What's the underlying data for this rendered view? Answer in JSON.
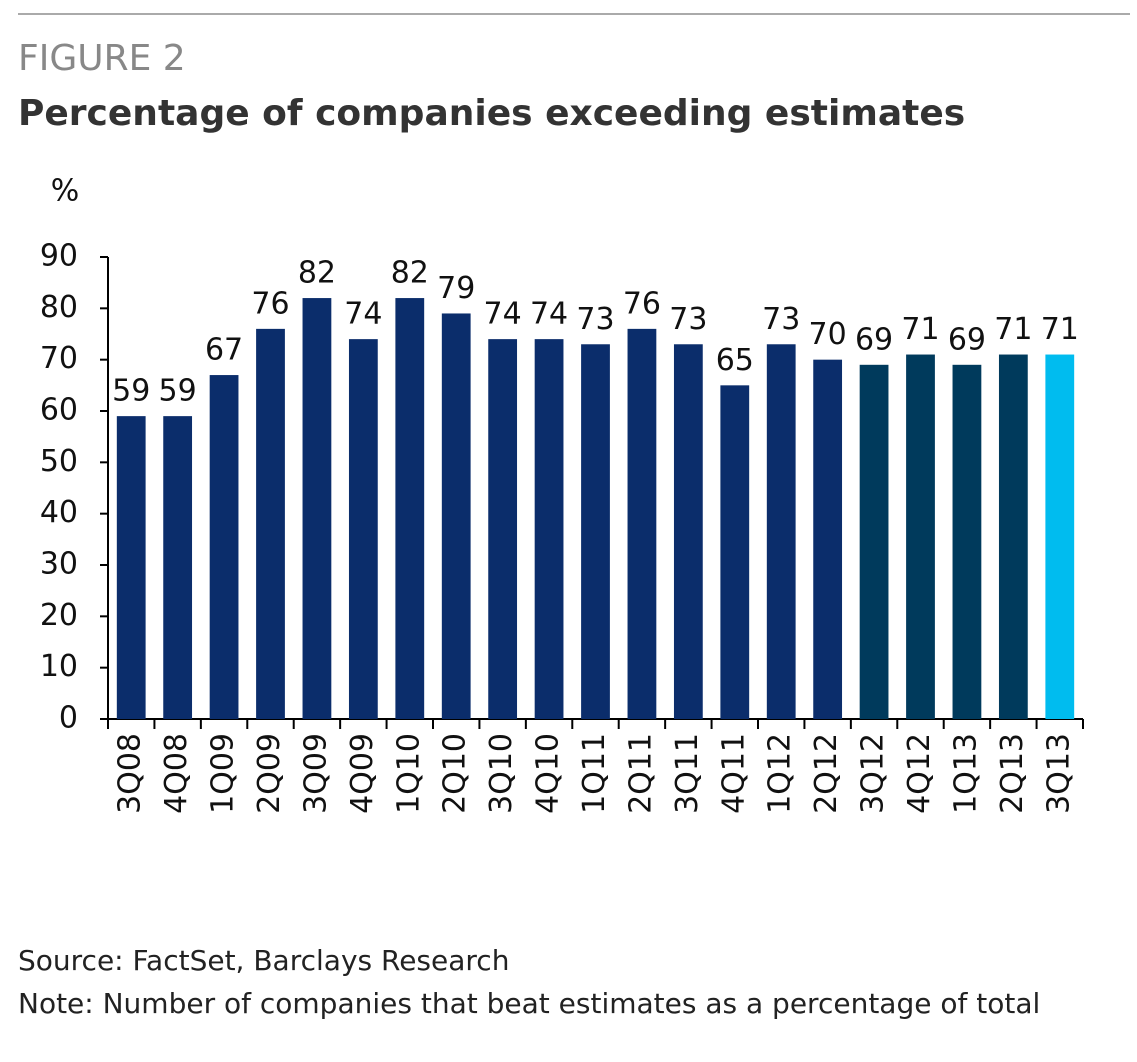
{
  "chart_data": {
    "type": "bar",
    "figure_label": "FIGURE 2",
    "title": "Percentage of companies exceeding estimates",
    "y_label": "%",
    "categories": [
      "3Q08",
      "4Q08",
      "1Q09",
      "2Q09",
      "3Q09",
      "4Q09",
      "1Q10",
      "2Q10",
      "3Q10",
      "4Q10",
      "1Q11",
      "2Q11",
      "3Q11",
      "4Q11",
      "1Q12",
      "2Q12",
      "3Q12",
      "4Q12",
      "1Q13",
      "2Q13",
      "3Q13"
    ],
    "values": [
      59,
      59,
      67,
      76,
      82,
      74,
      82,
      79,
      74,
      74,
      73,
      76,
      73,
      65,
      73,
      70,
      69,
      71,
      69,
      71,
      71
    ],
    "colors": [
      "#0b2d6b",
      "#0b2d6b",
      "#0b2d6b",
      "#0b2d6b",
      "#0b2d6b",
      "#0b2d6b",
      "#0b2d6b",
      "#0b2d6b",
      "#0b2d6b",
      "#0b2d6b",
      "#0b2d6b",
      "#0b2d6b",
      "#0b2d6b",
      "#0b2d6b",
      "#0b2d6b",
      "#0b2d6b",
      "#003a5c",
      "#003a5c",
      "#003a5c",
      "#003a5c",
      "#00bcef"
    ],
    "ylim": [
      0,
      90
    ],
    "yticks": [
      0,
      10,
      20,
      30,
      40,
      50,
      60,
      70,
      80,
      90
    ],
    "source": "Source: FactSet, Barclays Research",
    "note": "Note: Number of companies that beat estimates as a percentage of total"
  }
}
